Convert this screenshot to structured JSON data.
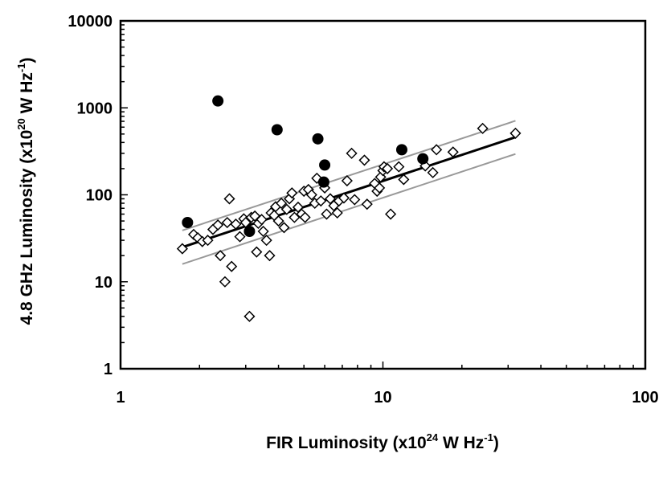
{
  "chart_data": {
    "type": "scatter",
    "title": "",
    "xlabel": {
      "prefix": "FIR Luminosity (x10",
      "exp": "24",
      "mid": " W Hz",
      "exp2": "-1",
      "suffix": ")"
    },
    "ylabel": {
      "prefix": "4.8 GHz Luminosity (x10",
      "exp": "20",
      "mid": " W Hz",
      "exp2": "-1",
      "suffix": ")"
    },
    "x_scale": "log",
    "y_scale": "log",
    "xlim": [
      1,
      100
    ],
    "ylim": [
      1,
      10000
    ],
    "x_tick_labels": [
      "1",
      "10",
      "100"
    ],
    "y_tick_labels": [
      "1",
      "10",
      "100",
      "1000",
      "10000"
    ],
    "grid": false,
    "legend": "none",
    "series": [
      {
        "marker": "open-diamond",
        "color": "#000000",
        "points": [
          [
            1.72,
            24
          ],
          [
            1.9,
            35
          ],
          [
            1.97,
            32
          ],
          [
            2.05,
            29
          ],
          [
            2.15,
            30
          ],
          [
            2.25,
            40
          ],
          [
            2.35,
            45
          ],
          [
            2.4,
            20
          ],
          [
            2.5,
            10
          ],
          [
            2.55,
            48
          ],
          [
            2.6,
            90
          ],
          [
            2.65,
            15
          ],
          [
            2.75,
            46
          ],
          [
            2.85,
            33
          ],
          [
            2.95,
            53
          ],
          [
            3.0,
            48
          ],
          [
            3.1,
            4
          ],
          [
            3.15,
            55
          ],
          [
            3.25,
            57
          ],
          [
            3.3,
            22
          ],
          [
            3.35,
            47
          ],
          [
            3.45,
            52
          ],
          [
            3.5,
            38
          ],
          [
            3.6,
            30
          ],
          [
            3.7,
            20
          ],
          [
            3.75,
            62
          ],
          [
            3.85,
            58
          ],
          [
            3.9,
            73
          ],
          [
            4.0,
            50
          ],
          [
            4.1,
            80
          ],
          [
            4.2,
            42
          ],
          [
            4.3,
            68
          ],
          [
            4.4,
            90
          ],
          [
            4.5,
            105
          ],
          [
            4.6,
            55
          ],
          [
            4.75,
            72
          ],
          [
            4.9,
            60
          ],
          [
            5.0,
            110
          ],
          [
            5.05,
            55
          ],
          [
            5.2,
            115
          ],
          [
            5.35,
            100
          ],
          [
            5.5,
            80
          ],
          [
            5.6,
            155
          ],
          [
            5.8,
            85
          ],
          [
            6.0,
            120
          ],
          [
            6.1,
            60
          ],
          [
            6.3,
            90
          ],
          [
            6.5,
            75
          ],
          [
            6.7,
            62
          ],
          [
            6.8,
            85
          ],
          [
            7.1,
            92
          ],
          [
            7.3,
            145
          ],
          [
            7.6,
            300
          ],
          [
            7.8,
            88
          ],
          [
            8.5,
            250
          ],
          [
            8.7,
            78
          ],
          [
            9.3,
            135
          ],
          [
            9.5,
            110
          ],
          [
            9.7,
            120
          ],
          [
            9.8,
            160
          ],
          [
            10.0,
            190
          ],
          [
            10.1,
            210
          ],
          [
            10.4,
            200
          ],
          [
            10.7,
            60
          ],
          [
            11.5,
            210
          ],
          [
            12.0,
            150
          ],
          [
            14.5,
            215
          ],
          [
            15.5,
            180
          ],
          [
            16.0,
            330
          ],
          [
            18.5,
            310
          ],
          [
            24.0,
            580
          ],
          [
            32.0,
            510
          ]
        ]
      },
      {
        "marker": "filled-circle",
        "color": "#000000",
        "points": [
          [
            1.8,
            48
          ],
          [
            2.35,
            1200
          ],
          [
            3.1,
            38
          ],
          [
            3.95,
            560
          ],
          [
            5.65,
            440
          ],
          [
            5.95,
            140
          ],
          [
            6.0,
            220
          ],
          [
            11.8,
            330
          ],
          [
            14.2,
            260
          ]
        ]
      }
    ],
    "fit_lines": [
      {
        "color": "#000000",
        "width": 3,
        "points": [
          [
            1.72,
            25
          ],
          [
            32,
            460
          ]
        ]
      },
      {
        "color": "#999999",
        "width": 2,
        "points": [
          [
            1.72,
            39
          ],
          [
            32,
            710
          ]
        ]
      },
      {
        "color": "#999999",
        "width": 2,
        "points": [
          [
            1.72,
            16
          ],
          [
            32,
            295
          ]
        ]
      }
    ]
  }
}
